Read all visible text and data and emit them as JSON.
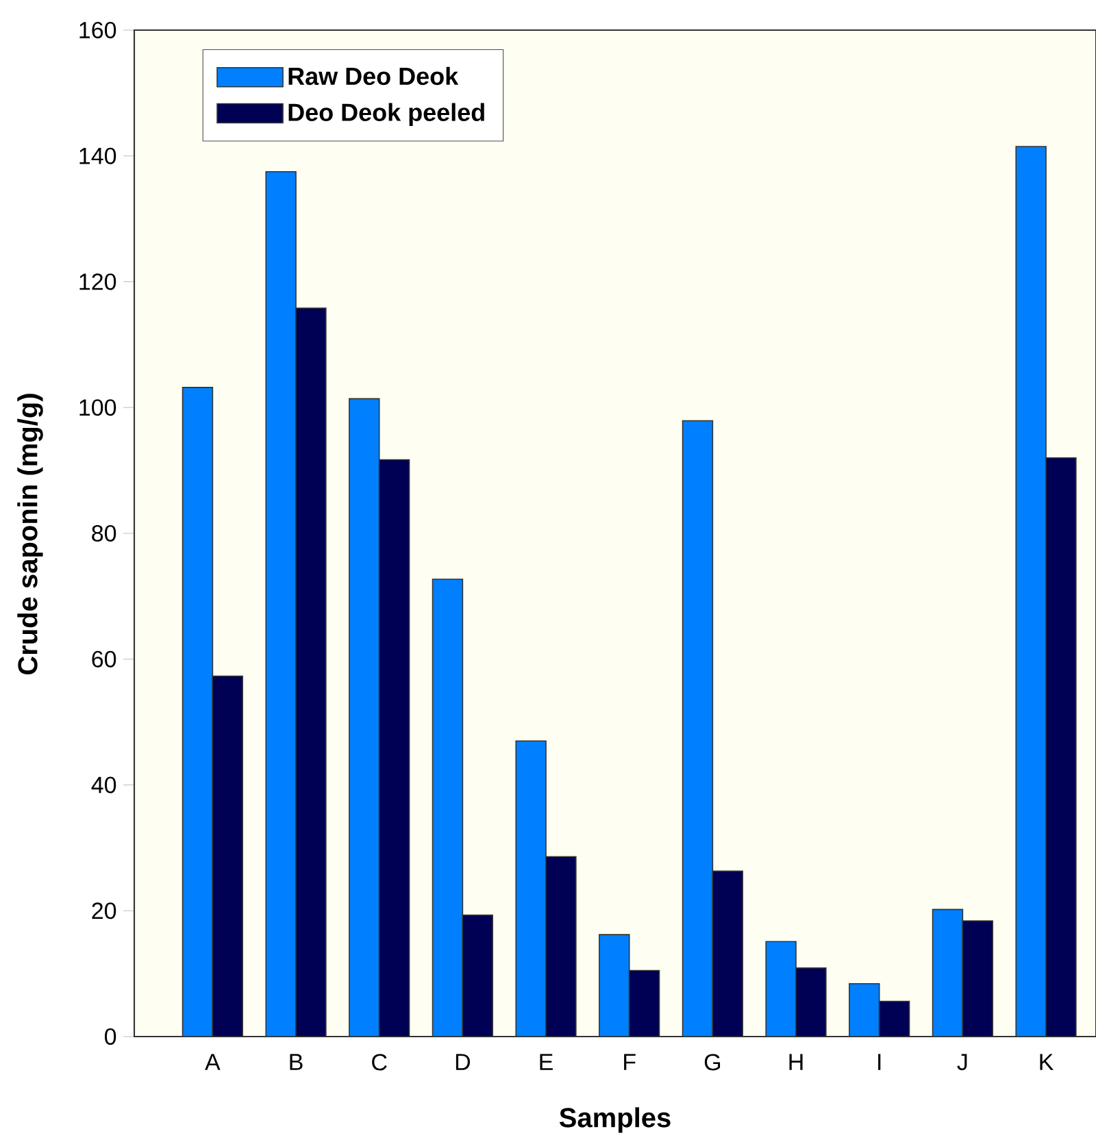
{
  "chart_data": {
    "type": "bar",
    "xlabel": "Samples",
    "ylabel": "Crude saponin (mg/g)",
    "categories": [
      "A",
      "B",
      "C",
      "D",
      "E",
      "F",
      "G",
      "H",
      "I",
      "J",
      "K"
    ],
    "series": [
      {
        "name": "Raw Deo Deok",
        "color": "#0080ff",
        "values": [
          103.2,
          137.5,
          101.4,
          72.7,
          47.0,
          16.2,
          97.9,
          15.1,
          8.4,
          20.2,
          141.5
        ]
      },
      {
        "name": "Deo Deok peeled",
        "color": "#000055",
        "values": [
          57.3,
          115.8,
          91.7,
          19.3,
          28.6,
          10.5,
          26.3,
          10.9,
          5.6,
          18.4,
          92.0
        ]
      }
    ],
    "ylim": [
      0,
      160
    ],
    "yticks": [
      0,
      20,
      40,
      60,
      80,
      100,
      120,
      140,
      160
    ],
    "legend": "top left",
    "grid": false
  }
}
